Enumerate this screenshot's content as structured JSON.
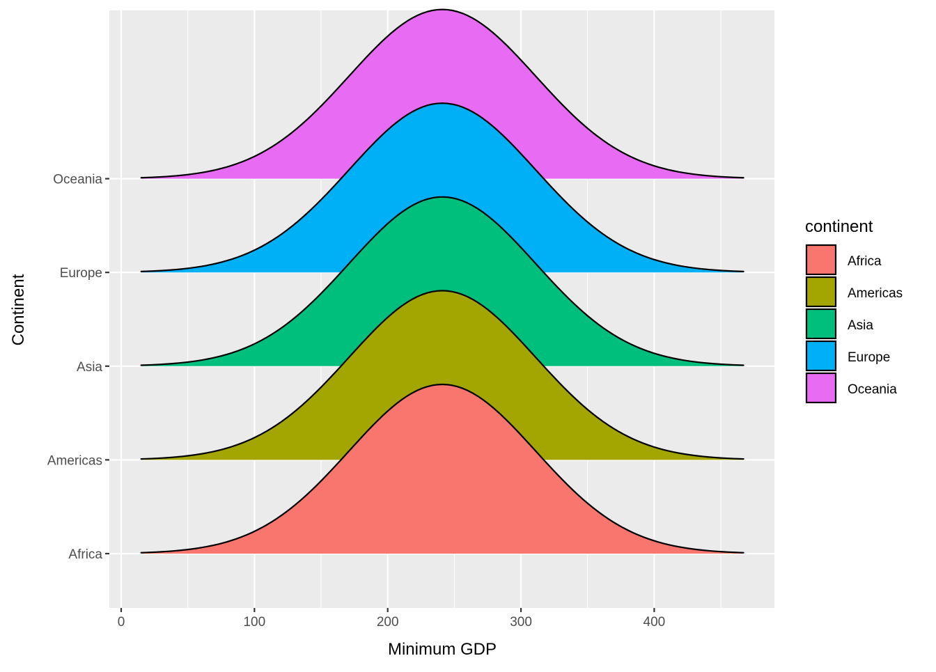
{
  "chart_data": {
    "type": "area",
    "subtype": "ridgeline",
    "title": "",
    "xlabel": "Minimum GDP",
    "ylabel": "Continent",
    "xlim": [
      -5,
      491
    ],
    "x_ticks": [
      0,
      100,
      200,
      300,
      400
    ],
    "x_range": [
      15,
      467
    ],
    "categories": [
      "Africa",
      "Americas",
      "Asia",
      "Europe",
      "Oceania"
    ],
    "series": [
      {
        "name": "Africa",
        "color": "#F8766D",
        "peak_x": 241,
        "sd": 70
      },
      {
        "name": "Americas",
        "color": "#A3A500",
        "peak_x": 241,
        "sd": 70
      },
      {
        "name": "Asia",
        "color": "#00BF7D",
        "peak_x": 241,
        "sd": 70
      },
      {
        "name": "Europe",
        "color": "#00B0F6",
        "peak_x": 241,
        "sd": 70
      },
      {
        "name": "Oceania",
        "color": "#E76BF3",
        "peak_x": 241,
        "sd": 70
      }
    ],
    "legend": {
      "title": "continent",
      "position": "right"
    },
    "panel_background": "#EBEBEB",
    "grid": true
  }
}
